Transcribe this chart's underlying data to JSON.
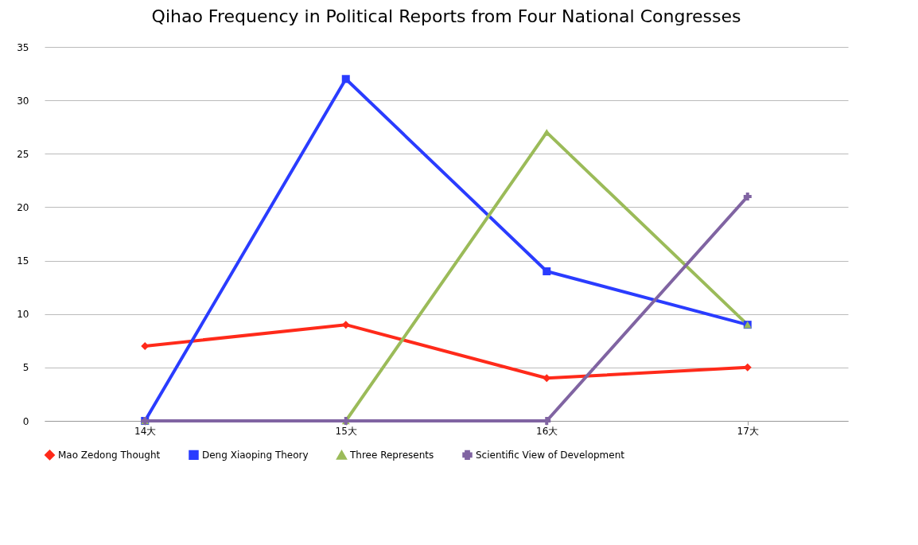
{
  "chart_data": {
    "type": "line",
    "title": "Qihao Frequency in Political Reports from Four National Congresses",
    "categories": [
      "14大",
      "15大",
      "16大",
      "17大"
    ],
    "series": [
      {
        "name": "Mao Zedong Thought",
        "color": "#ff2a1a",
        "marker": "diamond",
        "values": [
          7,
          9,
          4,
          5
        ]
      },
      {
        "name": "Deng Xiaoping Theory",
        "color": "#2a3cff",
        "marker": "square",
        "values": [
          0,
          32,
          14,
          9
        ]
      },
      {
        "name": "Three Represents",
        "color": "#9bbb59",
        "marker": "triangle",
        "values": [
          0,
          0,
          27,
          9
        ]
      },
      {
        "name": "Scientific View of Development",
        "color": "#8064a2",
        "marker": "cross",
        "values": [
          0,
          0,
          0,
          21
        ]
      }
    ],
    "ylim": [
      0,
      35
    ],
    "yticks": [
      0,
      5,
      10,
      15,
      20,
      25,
      30,
      35
    ],
    "grid": "y",
    "legend": "bottom",
    "line_style": "solid"
  }
}
